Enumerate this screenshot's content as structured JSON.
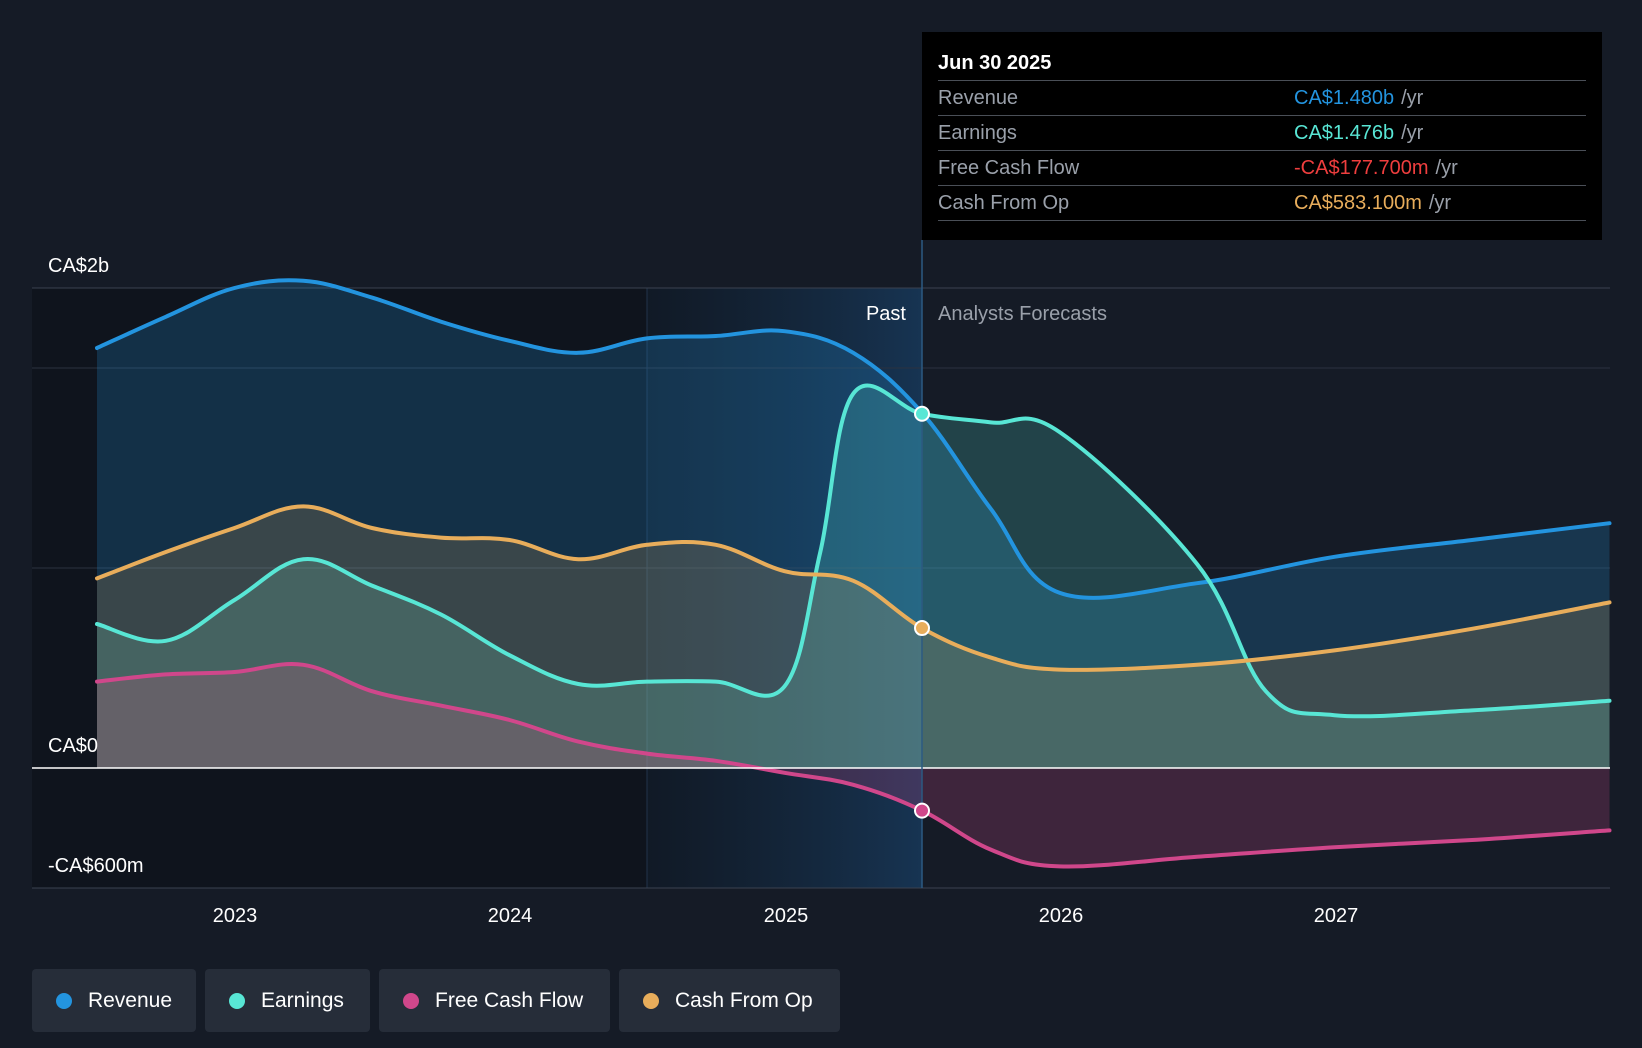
{
  "chart_data": {
    "type": "area",
    "title": "",
    "y_axis": {
      "min": -600,
      "max": 2000,
      "unit": "CA$m",
      "labels": {
        "top": "CA$2b",
        "zero": "CA$0",
        "bottom": "-CA$600m"
      }
    },
    "x_ticks": [
      "2023",
      "2024",
      "2025",
      "2026",
      "2027"
    ],
    "x_range": [
      2022.5,
      2028.0
    ],
    "regions": {
      "past_label": "Past",
      "forecast_label": "Analysts Forecasts",
      "divider_x": 2025.5,
      "highlight_start_x": 2024.5
    },
    "series": [
      {
        "name": "Revenue",
        "color": "#2394df",
        "points": [
          [
            2022.5,
            1750
          ],
          [
            2022.75,
            1880
          ],
          [
            2023.0,
            2000
          ],
          [
            2023.25,
            2030
          ],
          [
            2023.5,
            1960
          ],
          [
            2023.75,
            1860
          ],
          [
            2024.0,
            1780
          ],
          [
            2024.25,
            1730
          ],
          [
            2024.5,
            1790
          ],
          [
            2024.75,
            1800
          ],
          [
            2025.0,
            1820
          ],
          [
            2025.25,
            1730
          ],
          [
            2025.5,
            1480
          ],
          [
            2025.75,
            1080
          ],
          [
            2026.0,
            730
          ],
          [
            2026.5,
            770
          ],
          [
            2027.0,
            880
          ],
          [
            2027.5,
            950
          ],
          [
            2028.0,
            1020
          ]
        ]
      },
      {
        "name": "Earnings",
        "color": "#58e6d5",
        "points": [
          [
            2022.5,
            600
          ],
          [
            2022.75,
            530
          ],
          [
            2023.0,
            700
          ],
          [
            2023.25,
            870
          ],
          [
            2023.5,
            760
          ],
          [
            2023.75,
            640
          ],
          [
            2024.0,
            470
          ],
          [
            2024.25,
            350
          ],
          [
            2024.5,
            360
          ],
          [
            2024.75,
            360
          ],
          [
            2025.0,
            340
          ],
          [
            2025.13,
            900
          ],
          [
            2025.25,
            1560
          ],
          [
            2025.5,
            1476
          ],
          [
            2025.75,
            1440
          ],
          [
            2026.0,
            1400
          ],
          [
            2026.5,
            850
          ],
          [
            2026.75,
            320
          ],
          [
            2027.0,
            220
          ],
          [
            2027.5,
            240
          ],
          [
            2028.0,
            280
          ]
        ]
      },
      {
        "name": "Free Cash Flow",
        "color": "#d0478b",
        "points": [
          [
            2022.5,
            360
          ],
          [
            2022.75,
            390
          ],
          [
            2023.0,
            400
          ],
          [
            2023.25,
            430
          ],
          [
            2023.5,
            320
          ],
          [
            2023.75,
            260
          ],
          [
            2024.0,
            200
          ],
          [
            2024.25,
            110
          ],
          [
            2024.5,
            60
          ],
          [
            2024.75,
            30
          ],
          [
            2025.0,
            -20
          ],
          [
            2025.25,
            -70
          ],
          [
            2025.5,
            -177.7
          ],
          [
            2025.75,
            -340
          ],
          [
            2026.0,
            -410
          ],
          [
            2026.5,
            -370
          ],
          [
            2027.0,
            -330
          ],
          [
            2027.5,
            -300
          ],
          [
            2028.0,
            -260
          ]
        ]
      },
      {
        "name": "Cash From Op",
        "color": "#e8ad5b",
        "points": [
          [
            2022.5,
            790
          ],
          [
            2022.75,
            900
          ],
          [
            2023.0,
            1000
          ],
          [
            2023.25,
            1090
          ],
          [
            2023.5,
            1000
          ],
          [
            2023.75,
            960
          ],
          [
            2024.0,
            950
          ],
          [
            2024.25,
            870
          ],
          [
            2024.5,
            930
          ],
          [
            2024.75,
            930
          ],
          [
            2025.0,
            820
          ],
          [
            2025.25,
            780
          ],
          [
            2025.5,
            583.1
          ],
          [
            2025.75,
            460
          ],
          [
            2026.0,
            410
          ],
          [
            2026.5,
            430
          ],
          [
            2027.0,
            490
          ],
          [
            2027.5,
            580
          ],
          [
            2028.0,
            690
          ]
        ]
      }
    ],
    "tooltip": {
      "date": "Jun 30 2025",
      "rows": [
        {
          "label": "Revenue",
          "value": "CA$1.480b",
          "unit": "/yr",
          "color": "#2394df"
        },
        {
          "label": "Earnings",
          "value": "CA$1.476b",
          "unit": "/yr",
          "color": "#58e6d5"
        },
        {
          "label": "Free Cash Flow",
          "value": "-CA$177.700m",
          "unit": "/yr",
          "color": "#ef3e3e"
        },
        {
          "label": "Cash From Op",
          "value": "CA$583.100m",
          "unit": "/yr",
          "color": "#e8ad5b"
        }
      ]
    },
    "legend": [
      {
        "label": "Revenue",
        "color": "#2394df"
      },
      {
        "label": "Earnings",
        "color": "#58e6d5"
      },
      {
        "label": "Free Cash Flow",
        "color": "#d0478b"
      },
      {
        "label": "Cash From Op",
        "color": "#e8ad5b"
      }
    ]
  }
}
